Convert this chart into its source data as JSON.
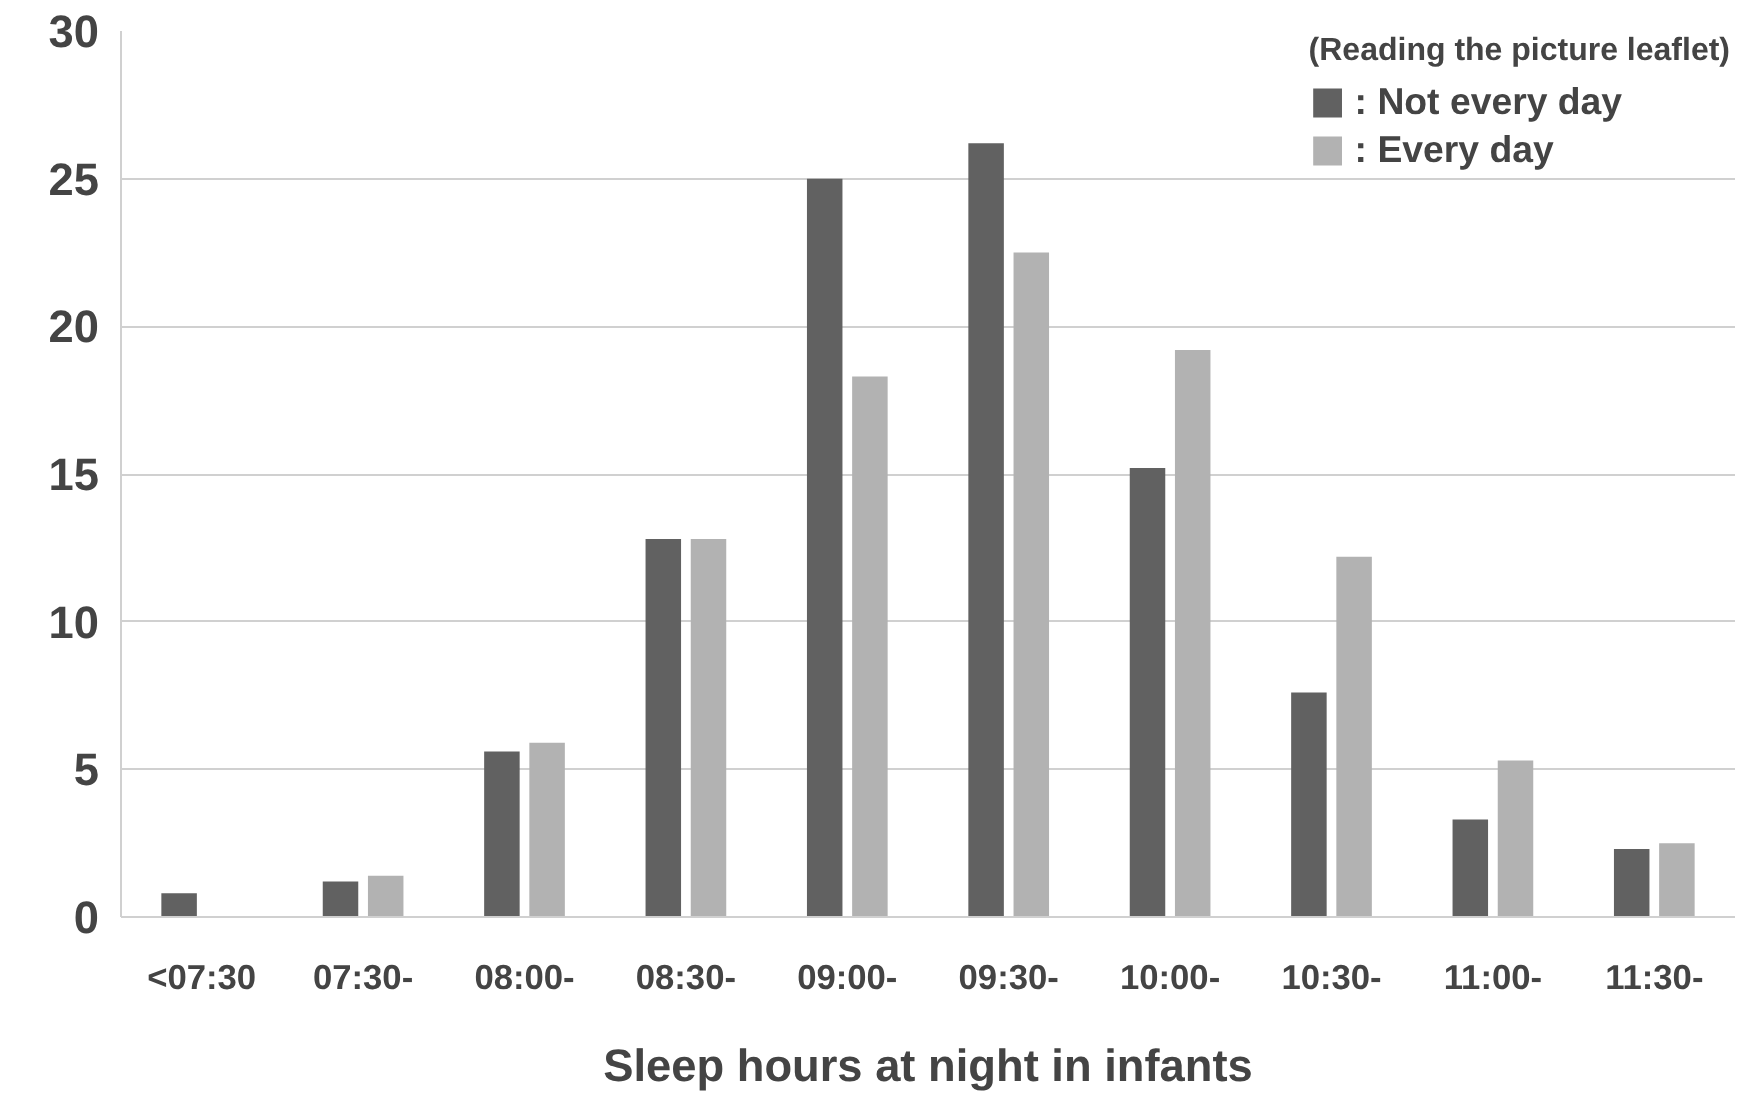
{
  "chart_data": {
    "type": "bar",
    "xlabel": "Sleep hours at night in infants",
    "legend_title": "(Reading the picture leaflet)",
    "categories": [
      "<07:30",
      "07:30-",
      "08:00-",
      "08:30-",
      "09:00-",
      "09:30-",
      "10:00-",
      "10:30-",
      "11:00-",
      "11:30-"
    ],
    "series": [
      {
        "name": ": Not every day",
        "color": "#616161",
        "values": [
          0.8,
          1.2,
          5.6,
          12.8,
          25.0,
          26.2,
          15.2,
          7.6,
          3.3,
          2.3
        ]
      },
      {
        "name": ": Every day",
        "color": "#b2b2b2",
        "values": [
          null,
          1.4,
          5.9,
          12.8,
          18.3,
          22.5,
          19.2,
          12.2,
          5.3,
          2.5
        ]
      }
    ],
    "ylim": [
      0,
      30
    ],
    "yticks": [
      0,
      5,
      10,
      15,
      20,
      25,
      30
    ],
    "grid": "y",
    "legend": "top right"
  }
}
